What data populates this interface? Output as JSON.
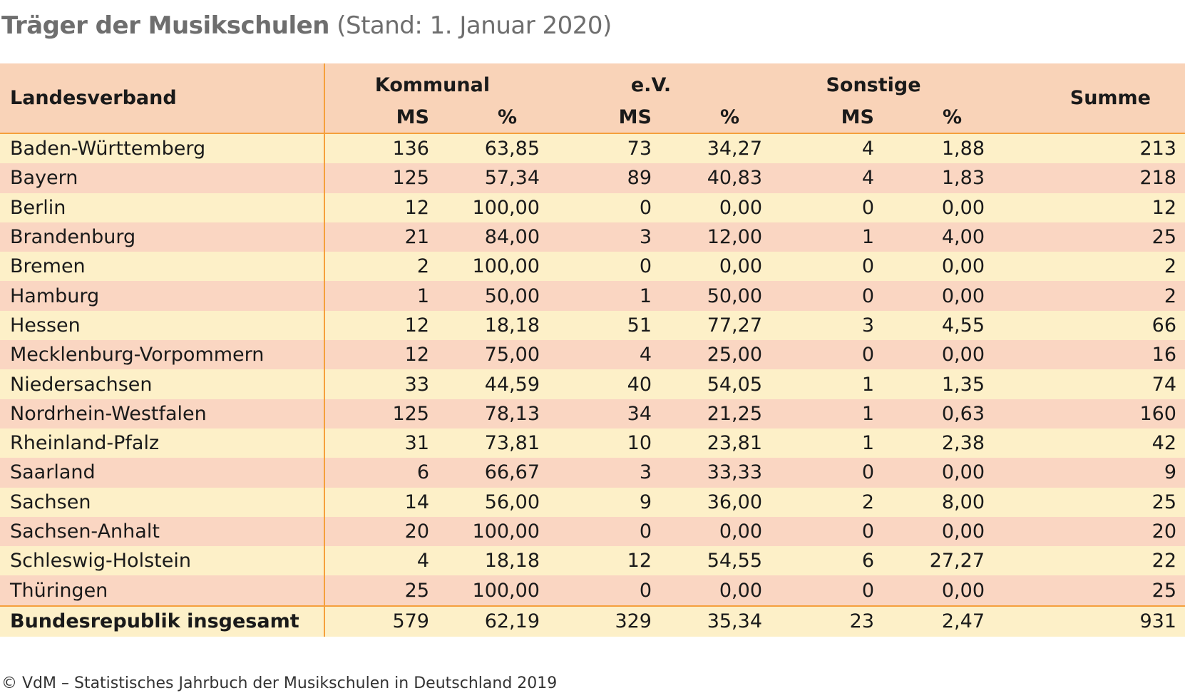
{
  "title": {
    "main": "Träger der Musikschulen",
    "sub": "(Stand: 1. Januar 2020)"
  },
  "table": {
    "headers": {
      "landesverband": "Landesverband",
      "kommunal": "Kommunal",
      "ev": "e.V.",
      "sonstige": "Sonstige",
      "summe": "Summe",
      "ms": "MS",
      "pct": "%"
    },
    "rows": [
      {
        "name": "Baden-Württemberg",
        "k_ms": "136",
        "k_pct": "63,85",
        "e_ms": "73",
        "e_pct": "34,27",
        "s_ms": "4",
        "s_pct": "1,88",
        "sum": "213"
      },
      {
        "name": "Bayern",
        "k_ms": "125",
        "k_pct": "57,34",
        "e_ms": "89",
        "e_pct": "40,83",
        "s_ms": "4",
        "s_pct": "1,83",
        "sum": "218"
      },
      {
        "name": "Berlin",
        "k_ms": "12",
        "k_pct": "100,00",
        "e_ms": "0",
        "e_pct": "0,00",
        "s_ms": "0",
        "s_pct": "0,00",
        "sum": "12"
      },
      {
        "name": "Brandenburg",
        "k_ms": "21",
        "k_pct": "84,00",
        "e_ms": "3",
        "e_pct": "12,00",
        "s_ms": "1",
        "s_pct": "4,00",
        "sum": "25"
      },
      {
        "name": "Bremen",
        "k_ms": "2",
        "k_pct": "100,00",
        "e_ms": "0",
        "e_pct": "0,00",
        "s_ms": "0",
        "s_pct": "0,00",
        "sum": "2"
      },
      {
        "name": "Hamburg",
        "k_ms": "1",
        "k_pct": "50,00",
        "e_ms": "1",
        "e_pct": "50,00",
        "s_ms": "0",
        "s_pct": "0,00",
        "sum": "2"
      },
      {
        "name": "Hessen",
        "k_ms": "12",
        "k_pct": "18,18",
        "e_ms": "51",
        "e_pct": "77,27",
        "s_ms": "3",
        "s_pct": "4,55",
        "sum": "66"
      },
      {
        "name": "Mecklenburg-Vorpommern",
        "k_ms": "12",
        "k_pct": "75,00",
        "e_ms": "4",
        "e_pct": "25,00",
        "s_ms": "0",
        "s_pct": "0,00",
        "sum": "16"
      },
      {
        "name": "Niedersachsen",
        "k_ms": "33",
        "k_pct": "44,59",
        "e_ms": "40",
        "e_pct": "54,05",
        "s_ms": "1",
        "s_pct": "1,35",
        "sum": "74"
      },
      {
        "name": "Nordrhein-Westfalen",
        "k_ms": "125",
        "k_pct": "78,13",
        "e_ms": "34",
        "e_pct": "21,25",
        "s_ms": "1",
        "s_pct": "0,63",
        "sum": "160"
      },
      {
        "name": "Rheinland-Pfalz",
        "k_ms": "31",
        "k_pct": "73,81",
        "e_ms": "10",
        "e_pct": "23,81",
        "s_ms": "1",
        "s_pct": "2,38",
        "sum": "42"
      },
      {
        "name": "Saarland",
        "k_ms": "6",
        "k_pct": "66,67",
        "e_ms": "3",
        "e_pct": "33,33",
        "s_ms": "0",
        "s_pct": "0,00",
        "sum": "9"
      },
      {
        "name": "Sachsen",
        "k_ms": "14",
        "k_pct": "56,00",
        "e_ms": "9",
        "e_pct": "36,00",
        "s_ms": "2",
        "s_pct": "8,00",
        "sum": "25"
      },
      {
        "name": "Sachsen-Anhalt",
        "k_ms": "20",
        "k_pct": "100,00",
        "e_ms": "0",
        "e_pct": "0,00",
        "s_ms": "0",
        "s_pct": "0,00",
        "sum": "20"
      },
      {
        "name": "Schleswig-Holstein",
        "k_ms": "4",
        "k_pct": "18,18",
        "e_ms": "12",
        "e_pct": "54,55",
        "s_ms": "6",
        "s_pct": "27,27",
        "sum": "22"
      },
      {
        "name": "Thüringen",
        "k_ms": "25",
        "k_pct": "100,00",
        "e_ms": "0",
        "e_pct": "0,00",
        "s_ms": "0",
        "s_pct": "0,00",
        "sum": "25"
      }
    ],
    "total": {
      "name": "Bundesrepublik insgesamt",
      "k_ms": "579",
      "k_pct": "62,19",
      "e_ms": "329",
      "e_pct": "35,34",
      "s_ms": "23",
      "s_pct": "2,47",
      "sum": "931"
    }
  },
  "footer": "© VdM – Statistisches Jahrbuch der Musikschulen in Deutschland 2019"
}
